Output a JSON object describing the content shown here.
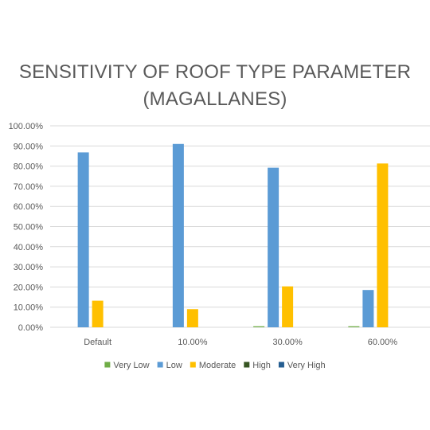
{
  "chart_data": {
    "type": "bar",
    "title": "SENSITIVITY OF ROOF TYPE PARAMETER",
    "subtitle": "(MAGALLANES)",
    "categories": [
      "Default",
      "10.00%",
      "30.00%",
      "60.00%"
    ],
    "series": [
      {
        "name": "Very Low",
        "color": "#70ad47",
        "values": [
          0.0,
          0.0,
          0.5,
          0.5
        ]
      },
      {
        "name": "Low",
        "color": "#5b9bd5",
        "values": [
          86.8,
          91.0,
          79.2,
          18.5
        ]
      },
      {
        "name": "Moderate",
        "color": "#ffc000",
        "values": [
          13.2,
          9.0,
          20.3,
          81.3
        ]
      },
      {
        "name": "High",
        "color": "#375623",
        "values": [
          0.0,
          0.0,
          0.0,
          0.0
        ]
      },
      {
        "name": "Very High",
        "color": "#255e91",
        "values": [
          0.0,
          0.0,
          0.0,
          0.0
        ]
      }
    ],
    "yticks": [
      "0.00%",
      "10.00%",
      "20.00%",
      "30.00%",
      "40.00%",
      "50.00%",
      "60.00%",
      "70.00%",
      "80.00%",
      "90.00%",
      "100.00%"
    ],
    "ylim": [
      0,
      100
    ],
    "grid": true,
    "legend_position": "bottom"
  }
}
